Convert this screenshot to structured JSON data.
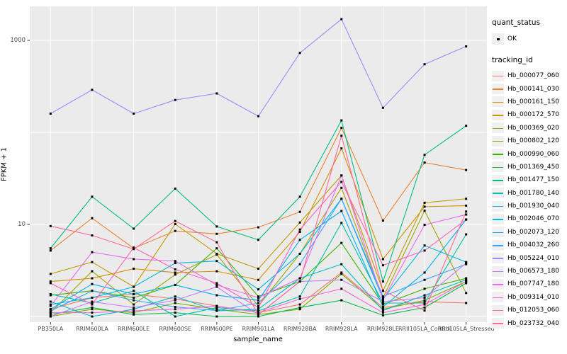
{
  "chart_data": {
    "type": "line",
    "title": "",
    "xlabel": "sample_name",
    "ylabel": "FPKM + 1",
    "yscale": "log10",
    "ytick_labels": [
      "1000",
      "10"
    ],
    "ytick_values": [
      1000,
      10
    ],
    "gridline_values": [
      1,
      10,
      100,
      1000
    ],
    "ylim": [
      0.9,
      2300
    ],
    "grid": true,
    "legend_position": "right",
    "point_color": "#000000",
    "panel_bg": "#ebebeb",
    "grid_color": "#ffffff",
    "categories": [
      "PB350LA",
      "RRIM600LA",
      "RRIM600LE",
      "RRIM600SE",
      "RRIM600PE",
      "RRIM901LA",
      "RRIM928BA",
      "RRIM928LA",
      "RRIM928LE",
      "RRII105LA_Control",
      "RRII105LA_Stressed"
    ],
    "series": [
      {
        "name": "Hb_000077_060",
        "color": "#F8766D",
        "values": [
          1.2,
          1.6,
          1.75,
          1.55,
          1.3,
          1.1,
          1.35,
          3.0,
          1.25,
          1.45,
          1.4
        ]
      },
      {
        "name": "Hb_000141_030",
        "color": "#EA8331",
        "values": [
          5.2,
          11.7,
          5.5,
          8.5,
          7.9,
          9.3,
          13.7,
          112,
          11,
          47,
          39
        ]
      },
      {
        "name": "Hb_000161_150",
        "color": "#D89000",
        "values": [
          2.4,
          2.6,
          3.3,
          3.0,
          3.1,
          2.5,
          8.3,
          67,
          4.2,
          15.6,
          16
        ]
      },
      {
        "name": "Hb_000172_570",
        "color": "#C09B00",
        "values": [
          2.9,
          3.9,
          2.1,
          10.1,
          4.8,
          3.3,
          10.5,
          34,
          1.9,
          17.2,
          19
        ]
      },
      {
        "name": "Hb_000369_020",
        "color": "#A3A500",
        "values": [
          1.1,
          3.1,
          1.35,
          2.85,
          4.7,
          1.3,
          4.8,
          25,
          1.6,
          14.1,
          1.8
        ]
      },
      {
        "name": "Hb_000802_120",
        "color": "#7CAE00",
        "values": [
          1.0,
          1.2,
          1.1,
          1.4,
          1.2,
          1.05,
          1.2,
          2.9,
          1.2,
          1.5,
          2.4
        ]
      },
      {
        "name": "Hb_000990_060",
        "color": "#39B600",
        "values": [
          1.7,
          1.9,
          1.6,
          2.2,
          5.5,
          1.65,
          2.4,
          6.3,
          1.35,
          2.0,
          2.6
        ]
      },
      {
        "name": "Hb_001369_450",
        "color": "#00BB4E",
        "values": [
          1.05,
          1.25,
          1.05,
          1.1,
          1.0,
          1.0,
          1.25,
          1.5,
          1.03,
          1.25,
          2.3
        ]
      },
      {
        "name": "Hb_001477_150",
        "color": "#00BF7D",
        "values": [
          5.5,
          20,
          9.0,
          24.5,
          9.5,
          6.8,
          20,
          135,
          2.4,
          57,
          118
        ]
      },
      {
        "name": "Hb_001780_140",
        "color": "#00C1A3",
        "values": [
          1.75,
          1.4,
          1.9,
          1.0,
          1.25,
          1.15,
          1.65,
          10.4,
          1.4,
          1.4,
          7.8
        ]
      },
      {
        "name": "Hb_001930_040",
        "color": "#00BFC4",
        "values": [
          1.45,
          1.0,
          1.2,
          1.65,
          1.15,
          1.2,
          2.6,
          3.7,
          1.16,
          1.7,
          2.5
        ]
      },
      {
        "name": "Hb_002046_070",
        "color": "#00BAE0",
        "values": [
          1.35,
          1.6,
          2.1,
          3.8,
          4.0,
          1.97,
          4.8,
          19,
          1.55,
          5.9,
          3.9
        ]
      },
      {
        "name": "Hb_002073_120",
        "color": "#00B0F6",
        "values": [
          1.2,
          2.25,
          1.75,
          2.2,
          1.7,
          1.5,
          6.8,
          14,
          1.27,
          3.0,
          11.3
        ]
      },
      {
        "name": "Hb_004032_260",
        "color": "#35A2FF",
        "values": [
          1.15,
          1.9,
          1.5,
          1.27,
          1.16,
          1.4,
          3.7,
          19,
          1.65,
          2.5,
          3.7
        ]
      },
      {
        "name": "Hb_005224_010",
        "color": "#9590FF",
        "values": [
          160,
          290,
          160,
          225,
          265,
          150,
          730,
          1700,
          185,
          550,
          860
        ]
      },
      {
        "name": "Hb_006573_180",
        "color": "#C77CFF",
        "values": [
          1.0,
          1.45,
          1.25,
          1.5,
          2.1,
          1.05,
          2.4,
          2.5,
          1.45,
          1.6,
          3.8
        ]
      },
      {
        "name": "Hb_007747_180",
        "color": "#E76BF3",
        "values": [
          1.3,
          5.0,
          4.2,
          4.0,
          2.2,
          1.6,
          2.6,
          34,
          1.5,
          9.9,
          12.8
        ]
      },
      {
        "name": "Hb_009314_010",
        "color": "#FA62DB",
        "values": [
          1.1,
          1.1,
          1.15,
          1.2,
          1.3,
          1.1,
          1.55,
          2.0,
          1.1,
          1.35,
          2.4
        ]
      },
      {
        "name": "Hb_012053_060",
        "color": "#FF62BC",
        "values": [
          2.3,
          1.35,
          5.6,
          3.25,
          2.3,
          1.25,
          8.8,
          29,
          3.6,
          5.2,
          11.3
        ]
      },
      {
        "name": "Hb_023732_040",
        "color": "#FF6A98",
        "values": [
          9.6,
          7.6,
          5.4,
          10.9,
          6.4,
          1.05,
          2.4,
          92,
          1.9,
          1.16,
          13.8
        ]
      }
    ]
  },
  "legend": {
    "quant_status_title": "quant_status",
    "quant_status_items": [
      "OK"
    ],
    "tracking_id_title": "tracking_id"
  }
}
